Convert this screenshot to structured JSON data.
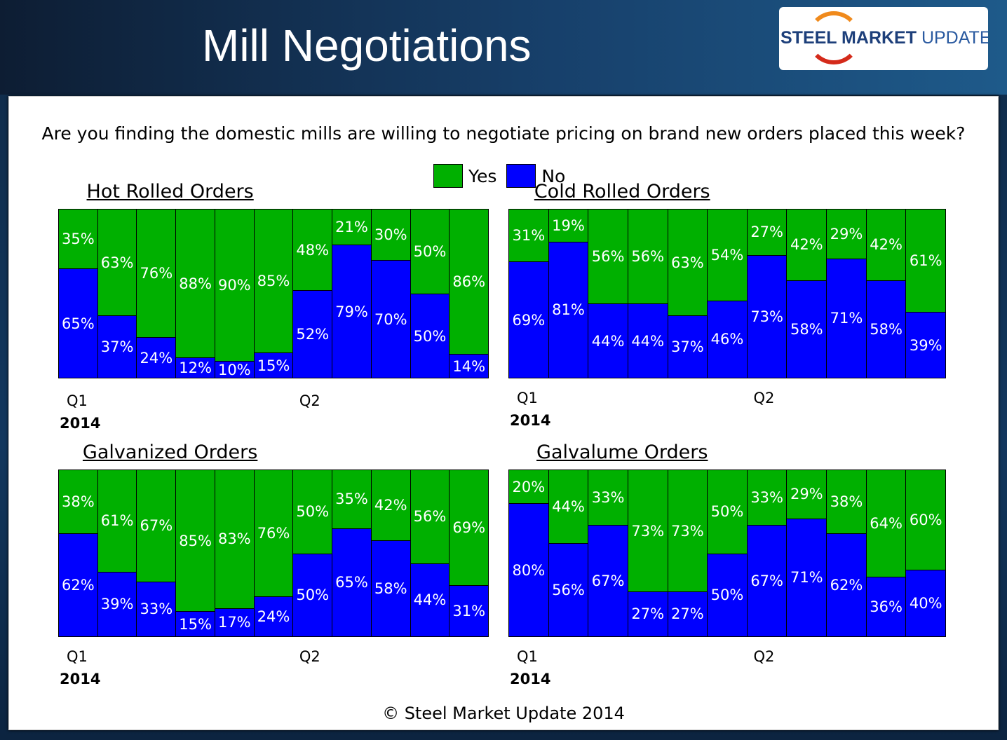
{
  "header": {
    "title": "Mill Negotiations",
    "logo_text": "STEEL MARKET UPDATE"
  },
  "question": "Are you finding the domestic mills are willing to negotiate pricing on brand new orders placed this week?",
  "legend": {
    "yes": "Yes",
    "no": "No"
  },
  "colors": {
    "yes": "#00b000",
    "no": "#0000ff"
  },
  "footer": "© Steel Market Update 2014",
  "chart_data": [
    {
      "type": "bar",
      "stacked": "100%",
      "title": "Hot Rolled Orders",
      "x_labels": [
        "Q1",
        "Q2"
      ],
      "year": "2014",
      "series": [
        {
          "name": "Yes",
          "values": [
            35,
            63,
            76,
            88,
            90,
            85,
            48,
            21,
            30,
            50,
            86
          ]
        },
        {
          "name": "No",
          "values": [
            65,
            37,
            24,
            12,
            10,
            15,
            52,
            79,
            70,
            50,
            14
          ]
        }
      ]
    },
    {
      "type": "bar",
      "stacked": "100%",
      "title": "Cold Rolled Orders",
      "x_labels": [
        "Q1",
        "Q2"
      ],
      "year": "2014",
      "series": [
        {
          "name": "Yes",
          "values": [
            31,
            19,
            56,
            56,
            63,
            54,
            27,
            42,
            29,
            42,
            61
          ]
        },
        {
          "name": "No",
          "values": [
            69,
            81,
            44,
            44,
            37,
            46,
            73,
            58,
            71,
            58,
            39
          ]
        }
      ]
    },
    {
      "type": "bar",
      "stacked": "100%",
      "title": "Galvanized Orders",
      "x_labels": [
        "Q1",
        "Q2"
      ],
      "year": "2014",
      "series": [
        {
          "name": "Yes",
          "values": [
            38,
            61,
            67,
            85,
            83,
            76,
            50,
            35,
            42,
            56,
            69
          ]
        },
        {
          "name": "No",
          "values": [
            62,
            39,
            33,
            15,
            17,
            24,
            50,
            65,
            58,
            44,
            31
          ]
        }
      ]
    },
    {
      "type": "bar",
      "stacked": "100%",
      "title": "Galvalume Orders",
      "x_labels": [
        "Q1",
        "Q2"
      ],
      "year": "2014",
      "series": [
        {
          "name": "Yes",
          "values": [
            20,
            44,
            33,
            73,
            73,
            50,
            33,
            29,
            38,
            64,
            60
          ]
        },
        {
          "name": "No",
          "values": [
            80,
            56,
            67,
            27,
            27,
            50,
            67,
            71,
            62,
            36,
            40
          ]
        }
      ]
    }
  ]
}
